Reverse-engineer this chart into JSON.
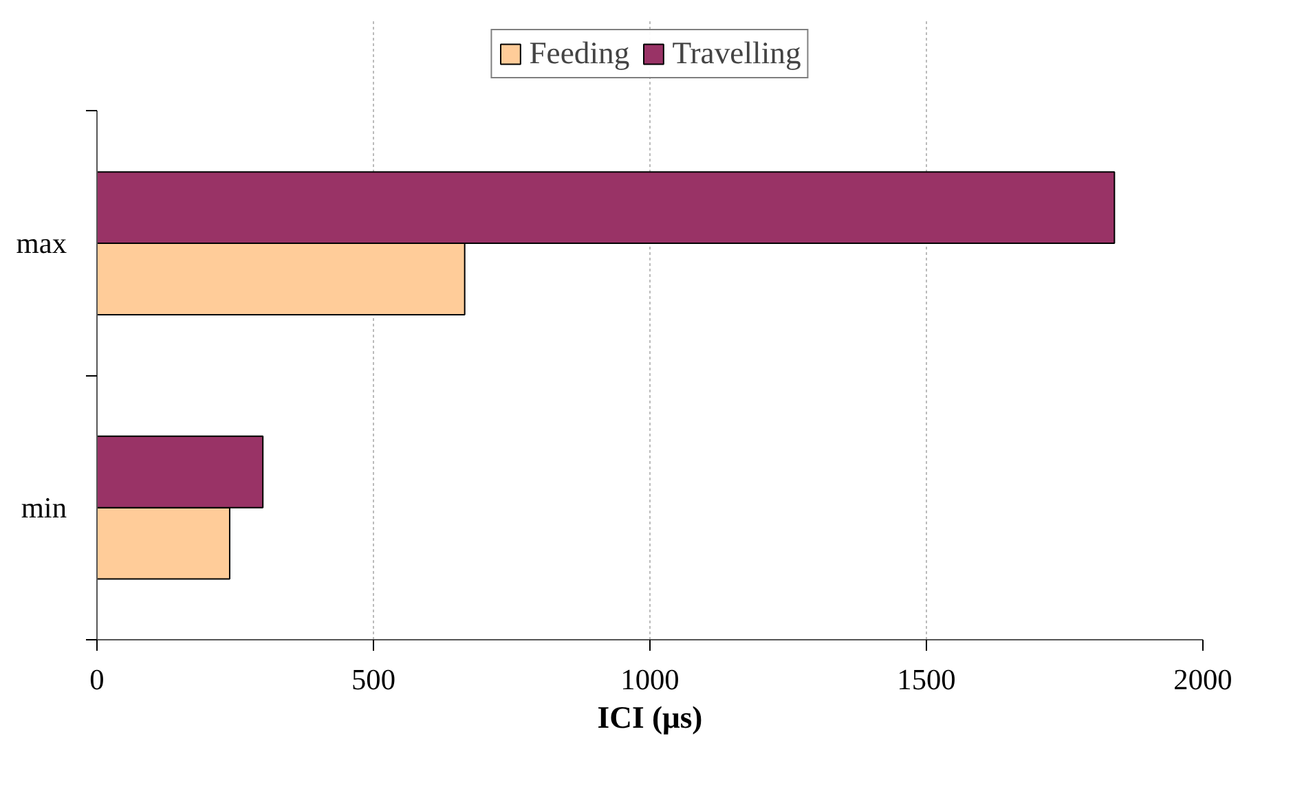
{
  "chart_data": {
    "type": "bar",
    "orientation": "horizontal",
    "categories": [
      "max",
      "min"
    ],
    "xlabel": "ICI (μs)",
    "series": [
      {
        "name": "Feeding",
        "color": "#ffcc99",
        "values": [
          665,
          240
        ]
      },
      {
        "name": "Travelling",
        "color": "#993366",
        "values": [
          1840,
          300
        ]
      }
    ],
    "xlim": [
      0,
      2000
    ],
    "xticks": [
      0,
      500,
      1000,
      1500,
      2000
    ],
    "grid": "x",
    "legend": "top"
  }
}
